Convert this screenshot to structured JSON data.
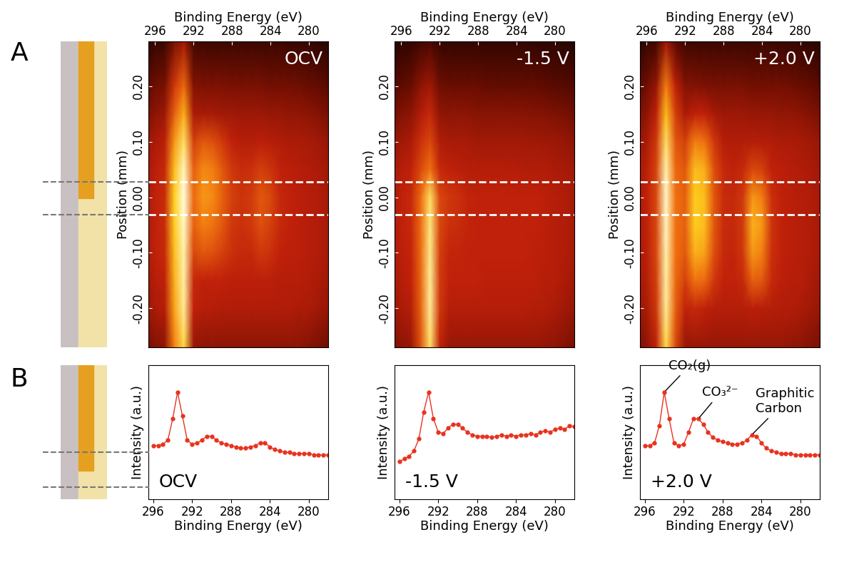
{
  "panel_labels": [
    "A",
    "B"
  ],
  "chart_data": [
    {
      "type": "heatmap",
      "title": "OCV",
      "xlabel": "Binding Energy (eV)",
      "ylabel": "Position (mm)",
      "x": [
        297,
        296,
        295,
        294,
        293,
        292,
        291,
        290,
        289,
        288,
        287,
        286,
        285,
        284,
        283,
        282,
        281,
        280,
        279,
        278
      ],
      "y": [
        -0.27,
        -0.2,
        -0.15,
        -0.1,
        -0.05,
        0.0,
        0.05,
        0.1,
        0.15,
        0.2,
        0.28
      ],
      "z": [
        [
          0.34,
          0.38,
          0.4,
          0.72,
          0.88,
          0.42,
          0.4,
          0.4,
          0.4,
          0.4,
          0.4,
          0.4,
          0.4,
          0.4,
          0.4,
          0.4,
          0.4,
          0.38,
          0.36,
          0.34
        ],
        [
          0.42,
          0.46,
          0.48,
          0.78,
          0.94,
          0.5,
          0.48,
          0.48,
          0.47,
          0.47,
          0.47,
          0.47,
          0.47,
          0.47,
          0.47,
          0.47,
          0.46,
          0.46,
          0.44,
          0.42
        ],
        [
          0.44,
          0.48,
          0.5,
          0.8,
          0.95,
          0.52,
          0.5,
          0.5,
          0.5,
          0.49,
          0.49,
          0.49,
          0.49,
          0.49,
          0.48,
          0.48,
          0.48,
          0.47,
          0.46,
          0.44
        ],
        [
          0.45,
          0.5,
          0.52,
          0.82,
          0.96,
          0.6,
          0.64,
          0.62,
          0.58,
          0.54,
          0.52,
          0.52,
          0.56,
          0.54,
          0.5,
          0.49,
          0.49,
          0.48,
          0.47,
          0.45
        ],
        [
          0.45,
          0.5,
          0.53,
          0.84,
          0.98,
          0.66,
          0.72,
          0.7,
          0.64,
          0.56,
          0.54,
          0.56,
          0.62,
          0.58,
          0.52,
          0.5,
          0.49,
          0.48,
          0.47,
          0.45
        ],
        [
          0.45,
          0.5,
          0.53,
          0.85,
          1.0,
          0.68,
          0.76,
          0.74,
          0.66,
          0.58,
          0.55,
          0.57,
          0.64,
          0.6,
          0.52,
          0.5,
          0.49,
          0.48,
          0.47,
          0.45
        ],
        [
          0.44,
          0.49,
          0.52,
          0.82,
          0.97,
          0.66,
          0.74,
          0.72,
          0.64,
          0.56,
          0.53,
          0.54,
          0.58,
          0.55,
          0.5,
          0.49,
          0.48,
          0.47,
          0.46,
          0.44
        ],
        [
          0.42,
          0.46,
          0.49,
          0.76,
          0.9,
          0.58,
          0.64,
          0.62,
          0.56,
          0.5,
          0.48,
          0.48,
          0.49,
          0.48,
          0.47,
          0.46,
          0.46,
          0.45,
          0.44,
          0.42
        ],
        [
          0.36,
          0.4,
          0.43,
          0.66,
          0.8,
          0.46,
          0.45,
          0.45,
          0.44,
          0.44,
          0.43,
          0.43,
          0.43,
          0.42,
          0.42,
          0.41,
          0.41,
          0.4,
          0.38,
          0.36
        ],
        [
          0.3,
          0.34,
          0.36,
          0.56,
          0.68,
          0.38,
          0.37,
          0.37,
          0.37,
          0.36,
          0.36,
          0.36,
          0.36,
          0.35,
          0.35,
          0.35,
          0.34,
          0.33,
          0.32,
          0.3
        ],
        [
          0.14,
          0.18,
          0.2,
          0.36,
          0.44,
          0.22,
          0.21,
          0.2,
          0.2,
          0.2,
          0.2,
          0.2,
          0.2,
          0.2,
          0.2,
          0.19,
          0.19,
          0.18,
          0.16,
          0.14
        ]
      ],
      "zlim": [
        0,
        1
      ],
      "xlim": [
        296.7,
        278
      ],
      "ylim": [
        -0.27,
        0.28
      ],
      "xticks": [
        296,
        292,
        288,
        284,
        280
      ],
      "yticks": [
        {
          "value": -0.2,
          "label": "-0.20"
        },
        {
          "value": -0.1,
          "label": "-0.10"
        },
        {
          "value": 0.0,
          "label": "0.00"
        },
        {
          "value": 0.1,
          "label": "0.10"
        },
        {
          "value": 0.2,
          "label": "0.20"
        }
      ],
      "marked_positions": [
        0.028,
        -0.032
      ]
    },
    {
      "type": "heatmap",
      "title": "-1.5 V",
      "xlabel": "Binding Energy (eV)",
      "ylabel": "Position (mm)",
      "x": [
        297,
        296,
        295,
        294,
        293,
        292,
        291,
        290,
        289,
        288,
        287,
        286,
        285,
        284,
        283,
        282,
        281,
        280,
        279,
        278
      ],
      "y": [
        -0.27,
        -0.2,
        -0.15,
        -0.1,
        -0.05,
        0.0,
        0.05,
        0.1,
        0.15,
        0.2,
        0.28
      ],
      "z": [
        [
          0.36,
          0.4,
          0.42,
          0.62,
          0.9,
          0.5,
          0.42,
          0.42,
          0.42,
          0.42,
          0.42,
          0.42,
          0.42,
          0.42,
          0.42,
          0.42,
          0.41,
          0.4,
          0.38,
          0.36
        ],
        [
          0.42,
          0.46,
          0.48,
          0.66,
          0.94,
          0.56,
          0.48,
          0.48,
          0.48,
          0.48,
          0.48,
          0.48,
          0.48,
          0.48,
          0.48,
          0.47,
          0.47,
          0.46,
          0.44,
          0.42
        ],
        [
          0.44,
          0.48,
          0.5,
          0.67,
          0.94,
          0.57,
          0.5,
          0.5,
          0.5,
          0.5,
          0.49,
          0.49,
          0.49,
          0.49,
          0.49,
          0.49,
          0.48,
          0.48,
          0.46,
          0.44
        ],
        [
          0.45,
          0.49,
          0.51,
          0.68,
          0.93,
          0.58,
          0.51,
          0.51,
          0.5,
          0.5,
          0.5,
          0.5,
          0.5,
          0.5,
          0.5,
          0.49,
          0.49,
          0.48,
          0.47,
          0.45
        ],
        [
          0.45,
          0.5,
          0.52,
          0.68,
          0.92,
          0.6,
          0.54,
          0.53,
          0.51,
          0.5,
          0.5,
          0.5,
          0.5,
          0.5,
          0.5,
          0.5,
          0.49,
          0.48,
          0.47,
          0.45
        ],
        [
          0.45,
          0.5,
          0.52,
          0.68,
          0.9,
          0.6,
          0.56,
          0.54,
          0.51,
          0.5,
          0.5,
          0.5,
          0.5,
          0.5,
          0.5,
          0.5,
          0.49,
          0.48,
          0.47,
          0.45
        ],
        [
          0.44,
          0.48,
          0.5,
          0.6,
          0.7,
          0.52,
          0.5,
          0.49,
          0.48,
          0.48,
          0.48,
          0.48,
          0.48,
          0.48,
          0.47,
          0.47,
          0.47,
          0.46,
          0.45,
          0.44
        ],
        [
          0.4,
          0.44,
          0.46,
          0.54,
          0.6,
          0.47,
          0.45,
          0.45,
          0.45,
          0.44,
          0.44,
          0.44,
          0.44,
          0.44,
          0.44,
          0.44,
          0.43,
          0.43,
          0.42,
          0.4
        ],
        [
          0.34,
          0.38,
          0.4,
          0.47,
          0.52,
          0.41,
          0.4,
          0.4,
          0.4,
          0.39,
          0.39,
          0.39,
          0.39,
          0.39,
          0.39,
          0.38,
          0.38,
          0.37,
          0.36,
          0.34
        ],
        [
          0.28,
          0.31,
          0.33,
          0.4,
          0.44,
          0.34,
          0.33,
          0.33,
          0.33,
          0.33,
          0.32,
          0.32,
          0.32,
          0.32,
          0.32,
          0.32,
          0.31,
          0.3,
          0.29,
          0.28
        ],
        [
          0.12,
          0.15,
          0.17,
          0.22,
          0.25,
          0.18,
          0.17,
          0.17,
          0.17,
          0.17,
          0.17,
          0.17,
          0.17,
          0.17,
          0.17,
          0.16,
          0.16,
          0.15,
          0.14,
          0.12
        ]
      ],
      "zlim": [
        0,
        1
      ],
      "xlim": [
        296.7,
        278
      ],
      "ylim": [
        -0.27,
        0.28
      ],
      "xticks": [
        296,
        292,
        288,
        284,
        280
      ],
      "yticks": [
        {
          "value": -0.2,
          "label": "-0.20"
        },
        {
          "value": -0.1,
          "label": "-0.10"
        },
        {
          "value": 0.0,
          "label": "0.00"
        },
        {
          "value": 0.1,
          "label": "0.10"
        },
        {
          "value": 0.2,
          "label": "0.20"
        }
      ],
      "marked_positions": [
        0.028,
        -0.032
      ]
    },
    {
      "type": "heatmap",
      "title": "+2.0 V",
      "xlabel": "Binding Energy (eV)",
      "ylabel": "Position (mm)",
      "x": [
        297,
        296,
        295,
        294,
        293,
        292,
        291,
        290,
        289,
        288,
        287,
        286,
        285,
        284,
        283,
        282,
        281,
        280,
        279,
        278
      ],
      "y": [
        -0.27,
        -0.2,
        -0.15,
        -0.1,
        -0.05,
        0.0,
        0.05,
        0.1,
        0.15,
        0.2,
        0.28
      ],
      "z": [
        [
          0.36,
          0.4,
          0.5,
          0.88,
          0.6,
          0.42,
          0.42,
          0.42,
          0.42,
          0.42,
          0.42,
          0.42,
          0.42,
          0.42,
          0.42,
          0.42,
          0.41,
          0.4,
          0.38,
          0.36
        ],
        [
          0.42,
          0.46,
          0.56,
          0.94,
          0.66,
          0.5,
          0.52,
          0.5,
          0.48,
          0.48,
          0.48,
          0.48,
          0.49,
          0.48,
          0.48,
          0.47,
          0.47,
          0.46,
          0.44,
          0.42
        ],
        [
          0.44,
          0.48,
          0.58,
          0.95,
          0.68,
          0.58,
          0.7,
          0.68,
          0.56,
          0.5,
          0.5,
          0.52,
          0.66,
          0.64,
          0.52,
          0.49,
          0.48,
          0.48,
          0.46,
          0.44
        ],
        [
          0.45,
          0.49,
          0.6,
          0.96,
          0.7,
          0.64,
          0.8,
          0.78,
          0.62,
          0.52,
          0.51,
          0.56,
          0.76,
          0.72,
          0.54,
          0.5,
          0.49,
          0.48,
          0.47,
          0.45
        ],
        [
          0.45,
          0.5,
          0.6,
          0.97,
          0.7,
          0.66,
          0.84,
          0.82,
          0.64,
          0.53,
          0.52,
          0.57,
          0.8,
          0.76,
          0.55,
          0.5,
          0.49,
          0.48,
          0.47,
          0.45
        ],
        [
          0.45,
          0.5,
          0.6,
          0.98,
          0.7,
          0.66,
          0.84,
          0.82,
          0.64,
          0.53,
          0.52,
          0.56,
          0.76,
          0.72,
          0.54,
          0.5,
          0.49,
          0.48,
          0.47,
          0.45
        ],
        [
          0.44,
          0.49,
          0.59,
          0.96,
          0.68,
          0.64,
          0.82,
          0.8,
          0.62,
          0.52,
          0.5,
          0.52,
          0.6,
          0.58,
          0.5,
          0.49,
          0.48,
          0.47,
          0.46,
          0.44
        ],
        [
          0.42,
          0.46,
          0.56,
          0.9,
          0.64,
          0.58,
          0.72,
          0.7,
          0.56,
          0.48,
          0.47,
          0.47,
          0.48,
          0.47,
          0.47,
          0.46,
          0.46,
          0.45,
          0.44,
          0.42
        ],
        [
          0.36,
          0.4,
          0.5,
          0.82,
          0.58,
          0.46,
          0.5,
          0.5,
          0.45,
          0.43,
          0.43,
          0.43,
          0.42,
          0.42,
          0.42,
          0.41,
          0.41,
          0.4,
          0.38,
          0.36
        ],
        [
          0.3,
          0.34,
          0.42,
          0.72,
          0.5,
          0.38,
          0.38,
          0.37,
          0.36,
          0.36,
          0.36,
          0.36,
          0.35,
          0.35,
          0.35,
          0.35,
          0.34,
          0.33,
          0.32,
          0.3
        ],
        [
          0.14,
          0.18,
          0.22,
          0.44,
          0.3,
          0.21,
          0.2,
          0.2,
          0.2,
          0.2,
          0.2,
          0.2,
          0.2,
          0.2,
          0.2,
          0.19,
          0.19,
          0.18,
          0.16,
          0.14
        ]
      ],
      "zlim": [
        0,
        1
      ],
      "xlim": [
        296.7,
        278
      ],
      "ylim": [
        -0.27,
        0.28
      ],
      "xticks": [
        296,
        292,
        288,
        284,
        280
      ],
      "yticks": [
        {
          "value": -0.2,
          "label": "-0.20"
        },
        {
          "value": -0.1,
          "label": "-0.10"
        },
        {
          "value": 0.0,
          "label": "0.00"
        },
        {
          "value": 0.1,
          "label": "0.10"
        },
        {
          "value": 0.2,
          "label": "0.20"
        }
      ],
      "marked_positions": [
        0.028,
        -0.032
      ]
    },
    {
      "type": "line",
      "title": "OCV",
      "xlabel": "Binding Energy (eV)",
      "ylabel": "Intensity (a.u.)",
      "x": [
        296,
        295.5,
        295,
        294.5,
        294,
        293.5,
        293,
        292.5,
        292,
        291.5,
        291,
        290.5,
        290,
        289.5,
        289,
        288.5,
        288,
        287.5,
        287,
        286.5,
        286,
        285.5,
        285,
        284.5,
        284,
        283.5,
        283,
        282.5,
        282,
        281.5,
        281,
        280.5,
        280,
        279.5,
        279,
        278.5,
        278
      ],
      "values": [
        0.4,
        0.4,
        0.41,
        0.44,
        0.6,
        0.8,
        0.62,
        0.44,
        0.41,
        0.42,
        0.44,
        0.47,
        0.47,
        0.44,
        0.42,
        0.41,
        0.4,
        0.39,
        0.38,
        0.38,
        0.39,
        0.4,
        0.42,
        0.42,
        0.39,
        0.37,
        0.36,
        0.35,
        0.35,
        0.34,
        0.34,
        0.34,
        0.34,
        0.33,
        0.33,
        0.33,
        0.33
      ],
      "color": "#e8321e",
      "marker": "circle",
      "line_style": "solid",
      "xlim": [
        296.5,
        278
      ],
      "ylim": [
        0,
        1
      ],
      "xticks": [
        296,
        292,
        288,
        284,
        280
      ],
      "yticks": [],
      "tick_labels": "x"
    },
    {
      "type": "line",
      "title": "-1.5 V",
      "xlabel": "Binding Energy (eV)",
      "ylabel": "Intensity (a.u.)",
      "x": [
        296,
        295.5,
        295,
        294.5,
        294,
        293.5,
        293,
        292.5,
        292,
        291.5,
        291,
        290.5,
        290,
        289.5,
        289,
        288.5,
        288,
        287.5,
        287,
        286.5,
        286,
        285.5,
        285,
        284.5,
        284,
        283.5,
        283,
        282.5,
        282,
        281.5,
        281,
        280.5,
        280,
        279.5,
        279,
        278.5,
        278
      ],
      "values": [
        0.28,
        0.3,
        0.32,
        0.36,
        0.45,
        0.65,
        0.8,
        0.6,
        0.5,
        0.49,
        0.53,
        0.56,
        0.56,
        0.53,
        0.5,
        0.48,
        0.47,
        0.47,
        0.47,
        0.46,
        0.47,
        0.48,
        0.47,
        0.48,
        0.47,
        0.48,
        0.48,
        0.49,
        0.48,
        0.5,
        0.51,
        0.5,
        0.52,
        0.53,
        0.52,
        0.55,
        0.54
      ],
      "color": "#e8321e",
      "marker": "circle",
      "line_style": "solid",
      "xlim": [
        296.5,
        278
      ],
      "ylim": [
        0,
        1
      ],
      "xticks": [
        296,
        292,
        288,
        284,
        280
      ],
      "yticks": [],
      "tick_labels": "x"
    },
    {
      "type": "line",
      "title": "+2.0 V",
      "xlabel": "Binding Energy (eV)",
      "ylabel": "Intensity (a.u.)",
      "x": [
        296,
        295.5,
        295,
        294.5,
        294,
        293.5,
        293,
        292.5,
        292,
        291.5,
        291,
        290.5,
        290,
        289.5,
        289,
        288.5,
        288,
        287.5,
        287,
        286.5,
        286,
        285.5,
        285,
        284.5,
        284,
        283.5,
        283,
        282.5,
        282,
        281.5,
        281,
        280.5,
        280,
        279.5,
        279,
        278.5,
        278
      ],
      "values": [
        0.4,
        0.4,
        0.42,
        0.55,
        0.8,
        0.6,
        0.42,
        0.4,
        0.41,
        0.5,
        0.6,
        0.6,
        0.56,
        0.5,
        0.46,
        0.44,
        0.43,
        0.42,
        0.41,
        0.41,
        0.42,
        0.44,
        0.48,
        0.47,
        0.42,
        0.38,
        0.36,
        0.35,
        0.34,
        0.34,
        0.34,
        0.33,
        0.33,
        0.33,
        0.33,
        0.33,
        0.33
      ],
      "color": "#e8321e",
      "marker": "circle",
      "line_style": "solid",
      "xlim": [
        296.5,
        278
      ],
      "ylim": [
        0,
        1
      ],
      "xticks": [
        296,
        292,
        288,
        284,
        280
      ],
      "yticks": [],
      "tick_labels": "x",
      "annotations": [
        {
          "text": "CO₂(g)",
          "x": 294,
          "y": 0.8
        },
        {
          "text": "CO₃²⁻",
          "x": 290.5,
          "y": 0.6
        },
        {
          "text": "Graphitic\nCarbon",
          "x": 285,
          "y": 0.48
        }
      ]
    }
  ]
}
